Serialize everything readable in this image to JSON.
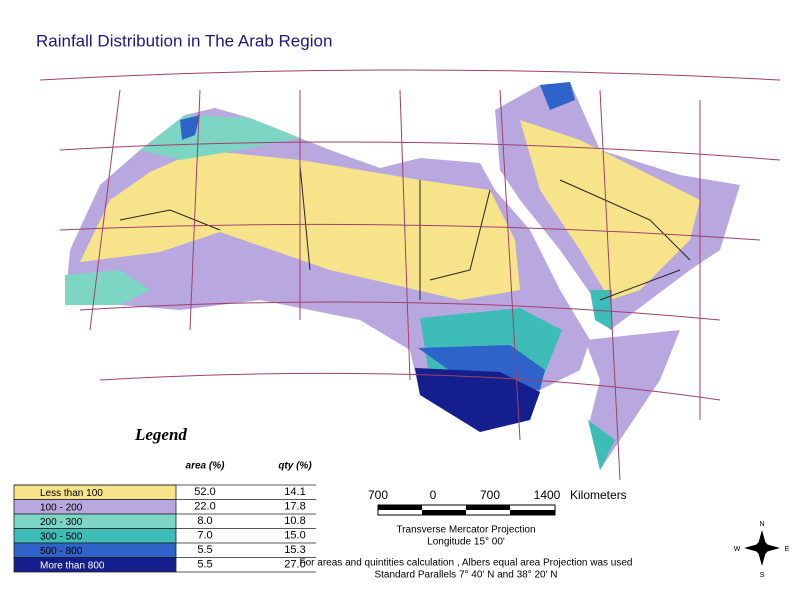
{
  "title": "Rainfall Distribution in The Arab Region",
  "legend": {
    "title": "Legend",
    "headers": [
      "area (%)",
      "qty (%)"
    ],
    "rows": [
      {
        "label": "Less than 100",
        "area": "52.0",
        "qty": "14.1",
        "color": "#f7e48a"
      },
      {
        "label": "100 - 200",
        "area": "22.0",
        "qty": "17.8",
        "color": "#b9a8df"
      },
      {
        "label": "200 - 300",
        "area": "8.0",
        "qty": "10.8",
        "color": "#7dd6c4"
      },
      {
        "label": "300 - 500",
        "area": "7.0",
        "qty": "15.0",
        "color": "#3dbcb8"
      },
      {
        "label": "500 - 800",
        "area": "5.5",
        "qty": "15.3",
        "color": "#2e63c9"
      },
      {
        "label": "More than 800",
        "area": "5.5",
        "qty": "27.0",
        "color": "#141e8c"
      }
    ]
  },
  "scale": {
    "labels": [
      "700",
      "0",
      "700",
      "1400"
    ],
    "unit": "Kilometers"
  },
  "projection": {
    "line1": "Transverse Mercator Projection",
    "line2": "Longitude 15° 00'",
    "line3": "For areas and quintities calculation , Albers equal area Projection was used",
    "line4": "Standard Parallels 7° 40' N and 38° 20' N"
  },
  "compass": {
    "n": "N",
    "e": "E",
    "s": "S",
    "w": "W"
  }
}
